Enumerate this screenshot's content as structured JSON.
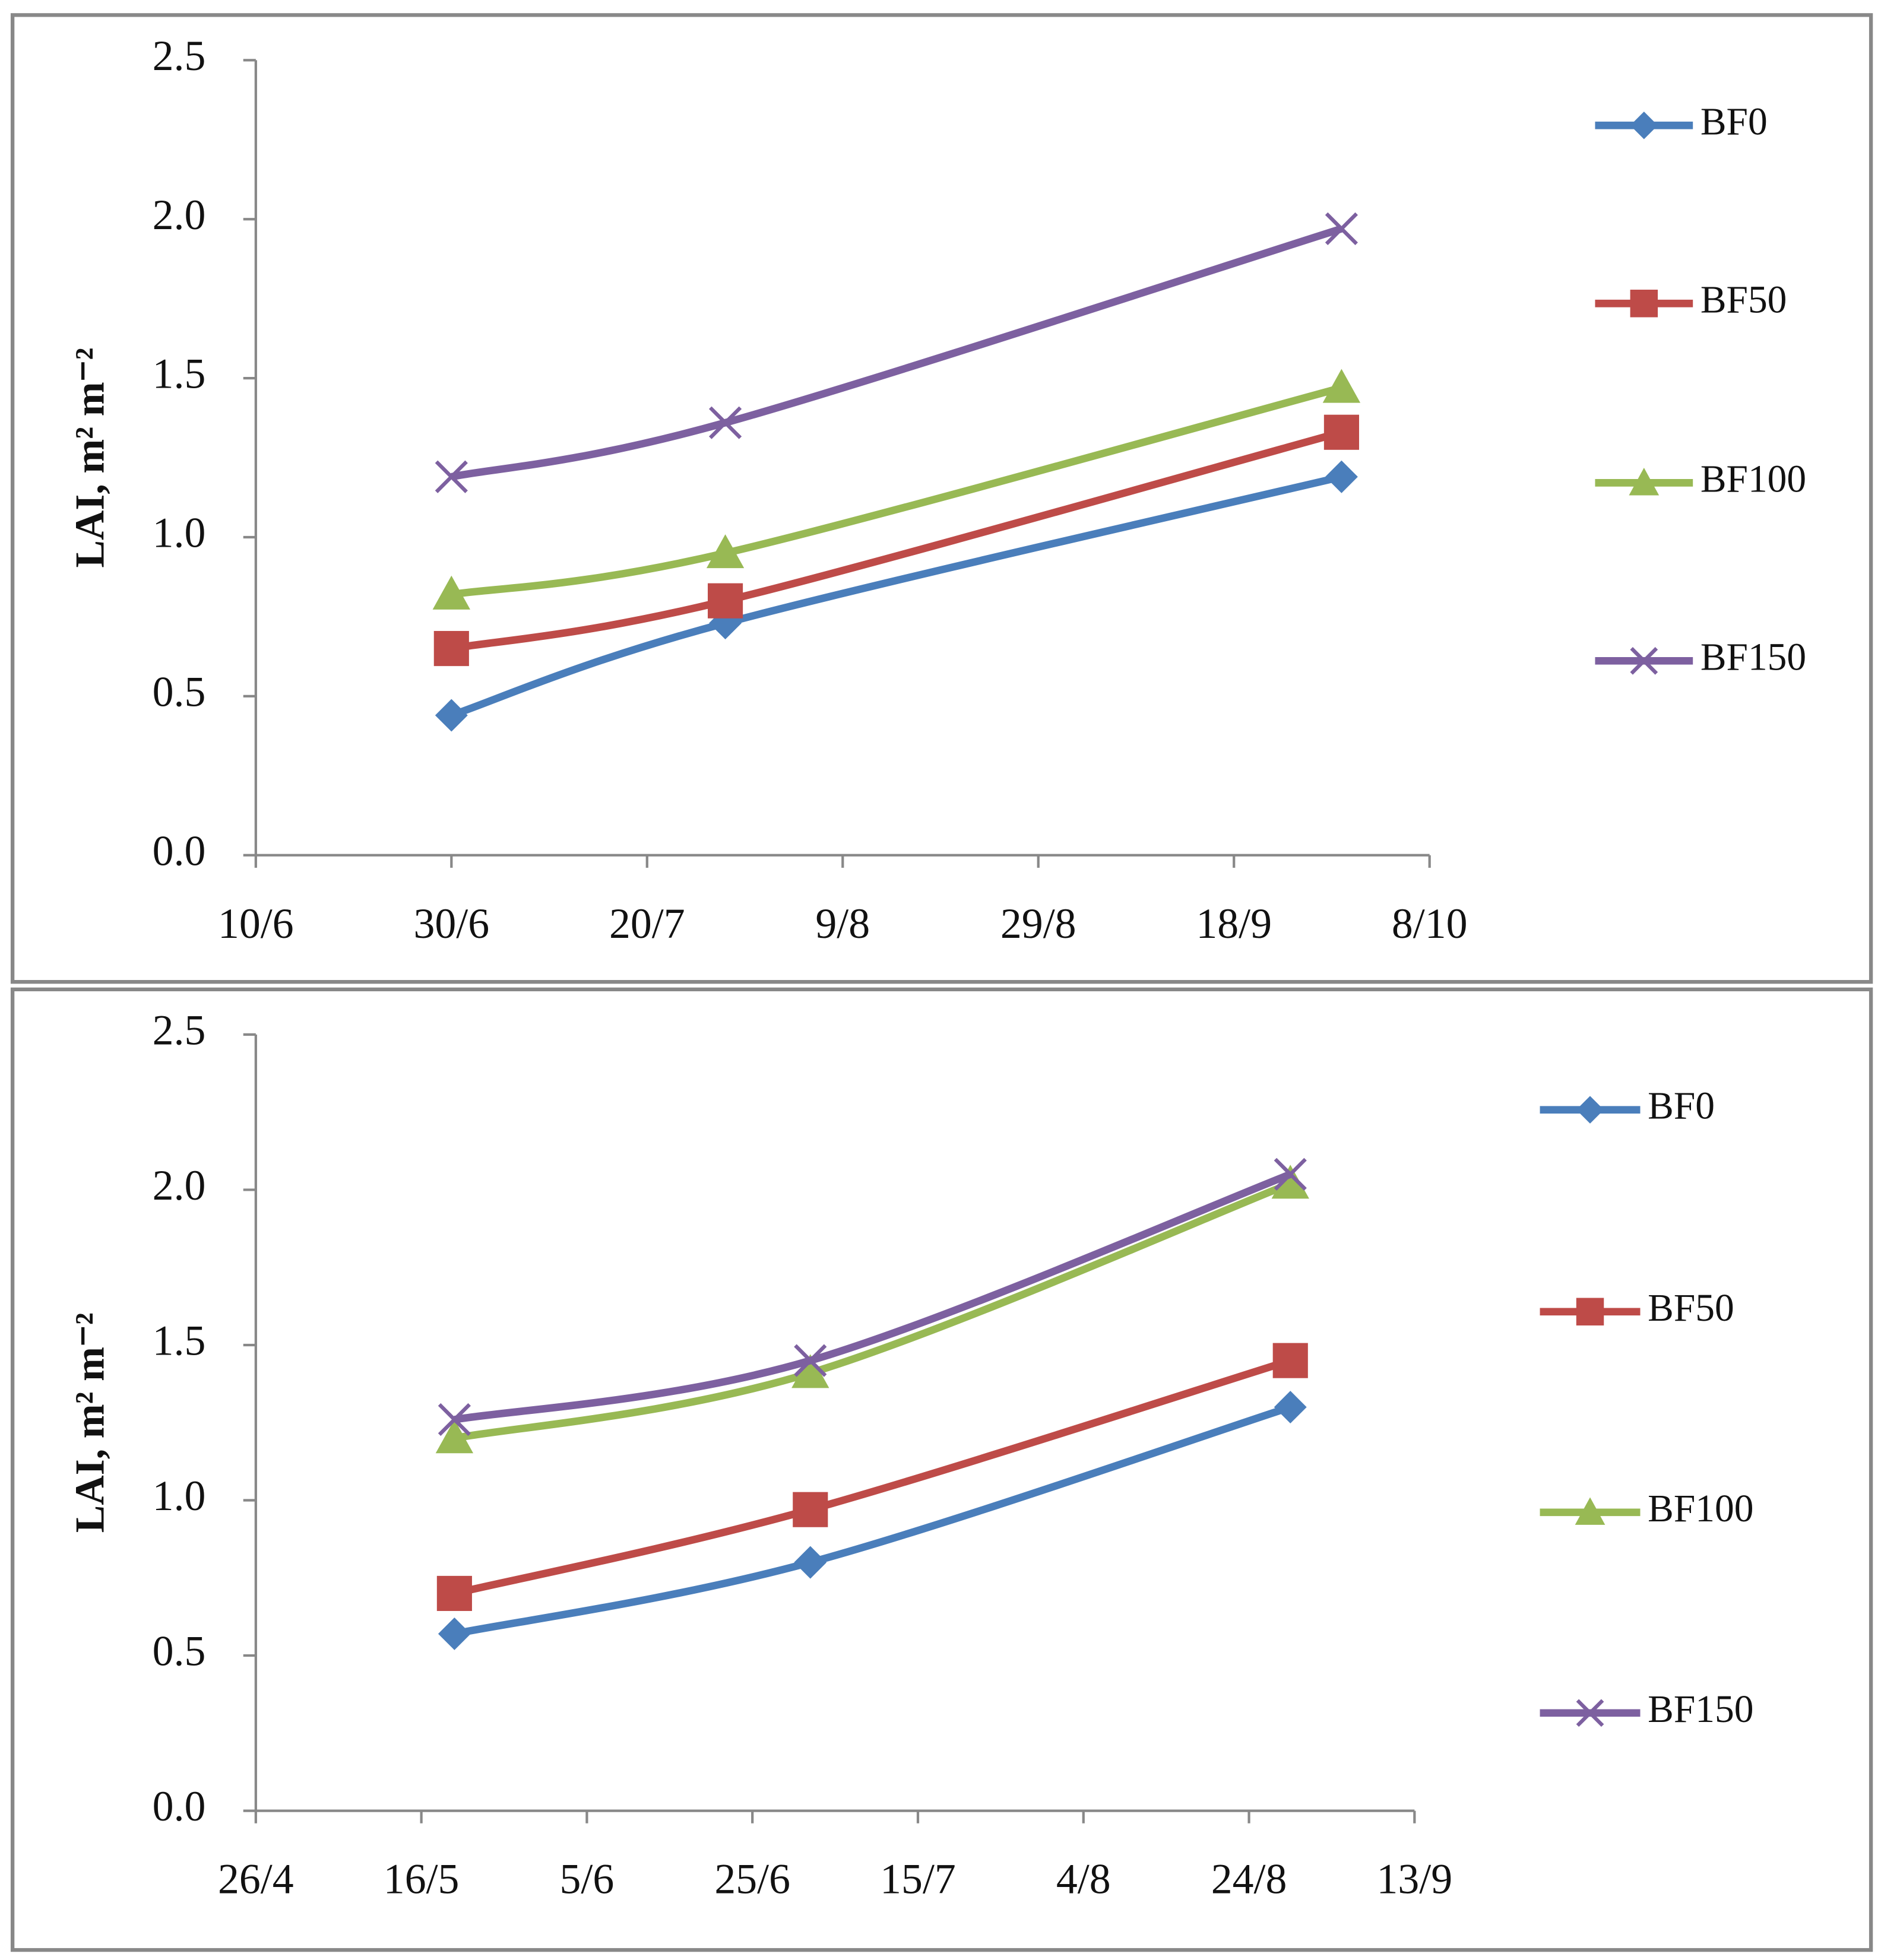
{
  "chart_data": [
    {
      "type": "line",
      "y_label": "LAI, m² m⁻²",
      "x": [
        "30/6",
        "28/7",
        "29/9"
      ],
      "xlim": [
        "10/6",
        "8/10"
      ],
      "xticks": [
        "10/6",
        "30/6",
        "20/7",
        "9/8",
        "29/8",
        "18/9",
        "8/10"
      ],
      "ylim": [
        0,
        2.5
      ],
      "yticks": [
        {
          "value": 0,
          "label": "0.0"
        },
        0.5,
        {
          "value": 1,
          "label": "1.0"
        },
        1.5,
        {
          "value": 2,
          "label": "2.0"
        },
        2.5
      ],
      "legend": "right",
      "series": [
        {
          "name": "BF0",
          "color": "#4a7ebb",
          "marker": "diamond",
          "values": [
            0.44,
            0.73,
            1.19
          ]
        },
        {
          "name": "BF50",
          "color": "#be4b48",
          "marker": "square",
          "values": [
            0.65,
            0.8,
            1.33
          ]
        },
        {
          "name": "BF100",
          "color": "#98b954",
          "marker": "triangle",
          "values": [
            0.82,
            0.95,
            1.47
          ]
        },
        {
          "name": "BF150",
          "color": "#7d60a0",
          "marker": "x",
          "values": [
            1.19,
            1.36,
            1.97
          ]
        }
      ]
    },
    {
      "type": "line",
      "y_label": "LAI, m² m⁻²",
      "x": [
        "20/5",
        "2/7",
        "29/8"
      ],
      "xlim": [
        "26/4",
        "13/9"
      ],
      "xticks": [
        "26/4",
        "16/5",
        "5/6",
        "25/6",
        "15/7",
        "4/8",
        "24/8",
        "13/9"
      ],
      "ylim": [
        0,
        2.5
      ],
      "yticks": [
        {
          "value": 0,
          "label": "0.0"
        },
        0.5,
        {
          "value": 1,
          "label": "1.0"
        },
        1.5,
        {
          "value": 2,
          "label": "2.0"
        },
        2.5
      ],
      "legend": "right",
      "series": [
        {
          "name": "BF0",
          "color": "#4a7ebb",
          "marker": "diamond",
          "values": [
            0.57,
            0.8,
            1.3
          ]
        },
        {
          "name": "BF50",
          "color": "#be4b48",
          "marker": "square",
          "values": [
            0.7,
            0.97,
            1.45
          ]
        },
        {
          "name": "BF100",
          "color": "#98b954",
          "marker": "triangle",
          "values": [
            1.2,
            1.41,
            2.02
          ]
        },
        {
          "name": "BF150",
          "color": "#7d60a0",
          "marker": "x",
          "values": [
            1.26,
            1.45,
            2.05
          ]
        }
      ]
    }
  ]
}
